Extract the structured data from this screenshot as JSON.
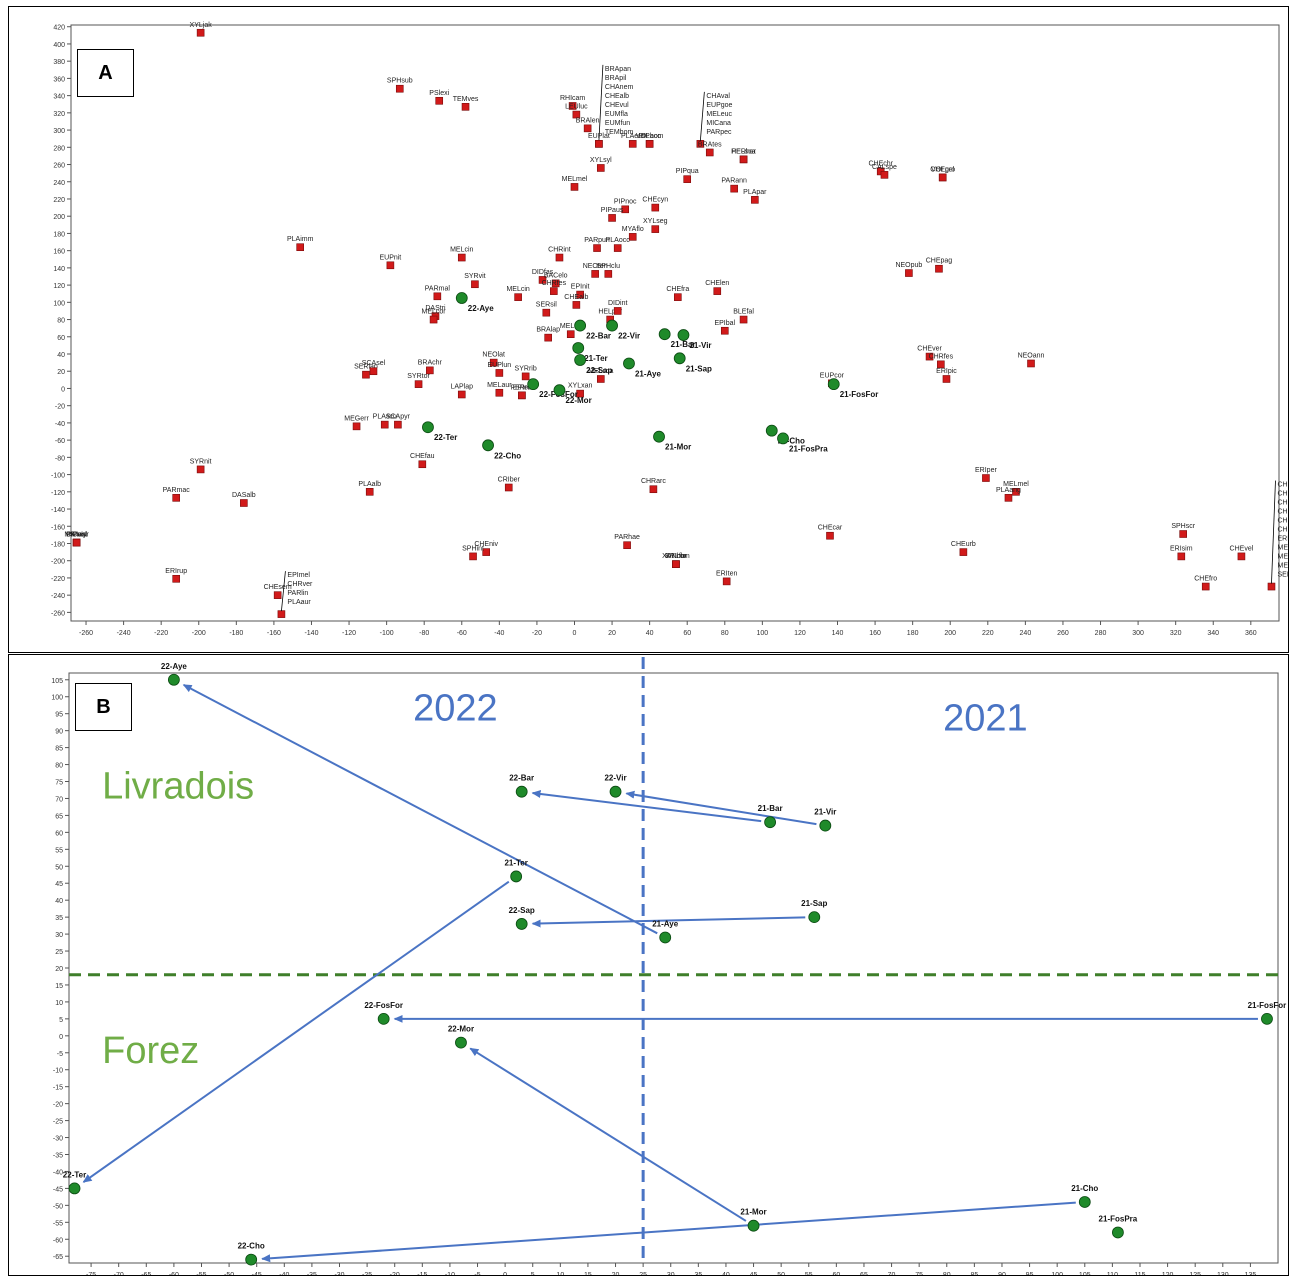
{
  "chart_data": [
    {
      "type": "scatter",
      "panel_label": "A",
      "xlim": [
        -268,
        375
      ],
      "ylim": [
        -270,
        422
      ],
      "x_ticks": [
        -260,
        -240,
        -220,
        -200,
        -180,
        -160,
        -140,
        -120,
        -100,
        -80,
        -60,
        -40,
        -20,
        0,
        20,
        40,
        60,
        80,
        100,
        120,
        140,
        160,
        180,
        200,
        220,
        240,
        260,
        280,
        300,
        320,
        340,
        360
      ],
      "y_ticks": [
        420,
        400,
        380,
        360,
        340,
        320,
        300,
        280,
        260,
        240,
        220,
        200,
        180,
        160,
        140,
        120,
        100,
        80,
        60,
        40,
        20,
        0,
        -20,
        -40,
        -60,
        -80,
        -100,
        -120,
        -140,
        -160,
        -180,
        -200,
        -220,
        -240,
        -260
      ],
      "species_color": "#d11a1a",
      "site_color": "#1f8a2a",
      "species": [
        {
          "label": "XYLjak",
          "x": -199,
          "y": 413
        },
        {
          "label": "SPHsub",
          "x": -93,
          "y": 348
        },
        {
          "label": "PSlexi",
          "x": -72,
          "y": 334
        },
        {
          "label": "TEMves",
          "x": -58,
          "y": 327
        },
        {
          "label": "RHIcam",
          "x": -1,
          "y": 328
        },
        {
          "label": "LEUluc",
          "x": 1,
          "y": 318
        },
        {
          "label": "BRAlen",
          "x": 7,
          "y": 302
        },
        {
          "label": "BRApan / BRApil / CHAnem / CHEalb / CHEvul / EUMfla / EUMfun / TEMbom",
          "x": 13,
          "y": 284
        },
        {
          "label": "EUPlat",
          "x": 13,
          "y": 284
        },
        {
          "label": "PLAeur",
          "x": 31,
          "y": 284
        },
        {
          "label": "PIPacc",
          "x": 40,
          "y": 284
        },
        {
          "label": "VOLbom",
          "x": 40,
          "y": 284
        },
        {
          "label": "CHAval / EUPgoe / MELeuc / MICana / PARpec",
          "x": 67,
          "y": 284
        },
        {
          "label": "BRAtes",
          "x": 72,
          "y": 274
        },
        {
          "label": "HERher",
          "x": 90,
          "y": 266
        },
        {
          "label": "PELsca",
          "x": 90,
          "y": 266
        },
        {
          "label": "XYLsyl",
          "x": 14,
          "y": 256
        },
        {
          "label": "MELmel",
          "x": 0,
          "y": 234
        },
        {
          "label": "PIPqua",
          "x": 60,
          "y": 243
        },
        {
          "label": "PARann",
          "x": 85,
          "y": 232
        },
        {
          "label": "PLApar",
          "x": 96,
          "y": 219
        },
        {
          "label": "CHEchr",
          "x": 163,
          "y": 252
        },
        {
          "label": "CALspe",
          "x": 165,
          "y": 248
        },
        {
          "label": "CHEgro",
          "x": 196,
          "y": 245
        },
        {
          "label": "VOLpel",
          "x": 196,
          "y": 245
        },
        {
          "label": "PIPnoc",
          "x": 27,
          "y": 208
        },
        {
          "label": "PIPaus",
          "x": 20,
          "y": 198
        },
        {
          "label": "CHEcyn",
          "x": 43,
          "y": 210
        },
        {
          "label": "XYLseg",
          "x": 43,
          "y": 185
        },
        {
          "label": "MYAflo",
          "x": 31,
          "y": 176
        },
        {
          "label": "PLAimm",
          "x": -146,
          "y": 164
        },
        {
          "label": "EUPnit",
          "x": -98,
          "y": 143
        },
        {
          "label": "MELcin",
          "x": -60,
          "y": 152
        },
        {
          "label": "CHRint",
          "x": -8,
          "y": 152
        },
        {
          "label": "PARpun",
          "x": 12,
          "y": 163
        },
        {
          "label": "PLAocc",
          "x": 23,
          "y": 163
        },
        {
          "label": "NEOten",
          "x": 11,
          "y": 133
        },
        {
          "label": "SPHclu",
          "x": 18,
          "y": 133
        },
        {
          "label": "SYRvit",
          "x": -53,
          "y": 121
        },
        {
          "label": "PARmal",
          "x": -73,
          "y": 107
        },
        {
          "label": "DIDfas",
          "x": -17,
          "y": 126
        },
        {
          "label": "BACelo",
          "x": -10,
          "y": 122
        },
        {
          "label": "CHRfes",
          "x": -11,
          "y": 113
        },
        {
          "label": "EPInit",
          "x": 3,
          "y": 109
        },
        {
          "label": "MELcin",
          "x": -30,
          "y": 106
        },
        {
          "label": "CHEfra",
          "x": 55,
          "y": 106
        },
        {
          "label": "CHElen",
          "x": 76,
          "y": 113
        },
        {
          "label": "DAStri",
          "x": -74,
          "y": 84
        },
        {
          "label": "MELcor",
          "x": -75,
          "y": 80
        },
        {
          "label": "SERsil",
          "x": -15,
          "y": 88
        },
        {
          "label": "CHEalb",
          "x": 1,
          "y": 97
        },
        {
          "label": "HELper",
          "x": 19,
          "y": 80
        },
        {
          "label": "DIDint",
          "x": 23,
          "y": 90
        },
        {
          "label": "EPIbal",
          "x": 80,
          "y": 67
        },
        {
          "label": "BLEfal",
          "x": 90,
          "y": 80
        },
        {
          "label": "NEOpub",
          "x": 178,
          "y": 134
        },
        {
          "label": "CHEpag",
          "x": 194,
          "y": 139
        },
        {
          "label": "MELsp",
          "x": -2,
          "y": 63
        },
        {
          "label": "BRAlap",
          "x": -14,
          "y": 59
        },
        {
          "label": "NEOlat",
          "x": -43,
          "y": 30
        },
        {
          "label": "SYRrib",
          "x": -26,
          "y": 14
        },
        {
          "label": "EUPlun",
          "x": -40,
          "y": 18
        },
        {
          "label": "MELsca",
          "x": 14,
          "y": 11
        },
        {
          "label": "SERlap",
          "x": -111,
          "y": 16
        },
        {
          "label": "SCAsel",
          "x": -107,
          "y": 20
        },
        {
          "label": "BRAchr",
          "x": -77,
          "y": 21
        },
        {
          "label": "SYRtor",
          "x": -83,
          "y": 5
        },
        {
          "label": "LAPlap",
          "x": -60,
          "y": -7
        },
        {
          "label": "MELaur",
          "x": -40,
          "y": -5
        },
        {
          "label": "FERruf",
          "x": -28,
          "y": -8
        },
        {
          "label": "XYLxan",
          "x": 3,
          "y": -6
        },
        {
          "label": "EPIeli",
          "x": -28,
          "y": -8
        },
        {
          "label": "MEGerr",
          "x": -116,
          "y": -44
        },
        {
          "label": "PLAscu",
          "x": -101,
          "y": -42
        },
        {
          "label": "SCApyr",
          "x": -94,
          "y": -42
        },
        {
          "label": "CHEfau",
          "x": -81,
          "y": -88
        },
        {
          "label": "EUPcor",
          "x": 137,
          "y": 6
        },
        {
          "label": "CHEver",
          "x": 189,
          "y": 37
        },
        {
          "label": "CHRfes",
          "x": 195,
          "y": 28
        },
        {
          "label": "ERIpic",
          "x": 198,
          "y": 11
        },
        {
          "label": "NEOann",
          "x": 243,
          "y": 29
        },
        {
          "label": "SYRnit",
          "x": -199,
          "y": -94
        },
        {
          "label": "PARmac",
          "x": -212,
          "y": -127
        },
        {
          "label": "DASalb",
          "x": -176,
          "y": -133
        },
        {
          "label": "PLAalb",
          "x": -109,
          "y": -120
        },
        {
          "label": "CRIber",
          "x": -35,
          "y": -115
        },
        {
          "label": "CHRarc",
          "x": 42,
          "y": -117
        },
        {
          "label": "ERIper",
          "x": 219,
          "y": -104
        },
        {
          "label": "MELmel",
          "x": 235,
          "y": -120
        },
        {
          "label": "PLAang",
          "x": 231,
          "y": -127
        },
        {
          "label": "CRIasi",
          "x": -265,
          "y": -179
        },
        {
          "label": "MICmyr",
          "x": -265,
          "y": -179
        },
        {
          "label": "PIPnot",
          "x": -265,
          "y": -179
        },
        {
          "label": "PIPvid",
          "x": -265,
          "y": -179
        },
        {
          "label": "CHEniv",
          "x": -47,
          "y": -190
        },
        {
          "label": "SPHint",
          "x": -54,
          "y": -195
        },
        {
          "label": "PARhae",
          "x": 28,
          "y": -182
        },
        {
          "label": "ERIhor",
          "x": 54,
          "y": -204
        },
        {
          "label": "XANcom",
          "x": 54,
          "y": -204
        },
        {
          "label": "XYLflo",
          "x": 54,
          "y": -204
        },
        {
          "label": "CHEcar",
          "x": 136,
          "y": -171
        },
        {
          "label": "CHEurb",
          "x": 207,
          "y": -190
        },
        {
          "label": "ERIrup",
          "x": -212,
          "y": -221
        },
        {
          "label": "ERIten",
          "x": 81,
          "y": -224
        },
        {
          "label": "CHEsem",
          "x": -158,
          "y": -240
        },
        {
          "label": "EPImel / CHRver / PARlin / PLAaur",
          "x": -156,
          "y": -262
        },
        {
          "label": "SPHscr",
          "x": 324,
          "y": -169
        },
        {
          "label": "ERIsim",
          "x": 323,
          "y": -195
        },
        {
          "label": "CHEvel",
          "x": 355,
          "y": -195
        },
        {
          "label": "CHEfro",
          "x": 336,
          "y": -230
        },
        {
          "label": "CHEant / CHEbar / CHEcla / CHEpsi / CHEpub / CHEuvi / ERIjug / MELhir / MERaen / MERequ / SERbom",
          "x": 371,
          "y": -230
        }
      ],
      "sites": [
        {
          "label": "22-Aye",
          "x": -60,
          "y": 105
        },
        {
          "label": "22-Bar",
          "x": 3,
          "y": 73
        },
        {
          "label": "22-Vir",
          "x": 20,
          "y": 73
        },
        {
          "label": "21-Bar",
          "x": 48,
          "y": 63
        },
        {
          "label": "21-Vir",
          "x": 58,
          "y": 62
        },
        {
          "label": "21-Ter",
          "x": 2,
          "y": 47
        },
        {
          "label": "22-Sap",
          "x": 3,
          "y": 33
        },
        {
          "label": "21-Aye",
          "x": 29,
          "y": 29
        },
        {
          "label": "21-Sap",
          "x": 56,
          "y": 35
        },
        {
          "label": "22-FosFor",
          "x": -22,
          "y": 5
        },
        {
          "label": "22-Mor",
          "x": -8,
          "y": -2
        },
        {
          "label": "21-FosFor",
          "x": 138,
          "y": 5
        },
        {
          "label": "22-Ter",
          "x": -78,
          "y": -45
        },
        {
          "label": "22-Cho",
          "x": -46,
          "y": -66
        },
        {
          "label": "21-Mor",
          "x": 45,
          "y": -56
        },
        {
          "label": "21-Cho",
          "x": 105,
          "y": -49
        },
        {
          "label": "21-FosPra",
          "x": 111,
          "y": -58
        }
      ]
    },
    {
      "type": "scatter",
      "panel_label": "B",
      "xlim": [
        -79,
        140
      ],
      "ylim": [
        -67,
        107
      ],
      "x_ticks": [
        -75,
        -70,
        -65,
        -60,
        -55,
        -50,
        -45,
        -40,
        -35,
        -30,
        -25,
        -20,
        -15,
        -10,
        -5,
        0,
        5,
        10,
        15,
        20,
        25,
        30,
        35,
        40,
        45,
        50,
        55,
        60,
        65,
        70,
        75,
        80,
        85,
        90,
        95,
        100,
        105,
        110,
        115,
        120,
        125,
        130,
        135
      ],
      "y_ticks": [
        105,
        100,
        95,
        90,
        85,
        80,
        75,
        70,
        65,
        60,
        55,
        50,
        45,
        40,
        35,
        30,
        25,
        20,
        15,
        10,
        5,
        0,
        -5,
        -10,
        -15,
        -20,
        -25,
        -30,
        -35,
        -40,
        -45,
        -50,
        -55,
        -60,
        -65
      ],
      "site_color": "#1f8a2a",
      "arrow_color": "#4a74c4",
      "year_line_x": 25,
      "region_line_y": 18,
      "region_line_color": "#3f7f2a",
      "text_labels": {
        "year_left": "2022",
        "year_right": "2021",
        "region_top": "Livradois",
        "region_bottom": "Forez"
      },
      "year_label_color": "#4a74c4",
      "region_label_color": "#70ad47",
      "sites": [
        {
          "label": "22-Aye",
          "x": -60,
          "y": 105
        },
        {
          "label": "22-Bar",
          "x": 3,
          "y": 72
        },
        {
          "label": "22-Vir",
          "x": 20,
          "y": 72
        },
        {
          "label": "21-Bar",
          "x": 48,
          "y": 63
        },
        {
          "label": "21-Vir",
          "x": 58,
          "y": 62
        },
        {
          "label": "21-Ter",
          "x": 2,
          "y": 47
        },
        {
          "label": "22-Sap",
          "x": 3,
          "y": 33
        },
        {
          "label": "21-Aye",
          "x": 29,
          "y": 29
        },
        {
          "label": "21-Sap",
          "x": 56,
          "y": 35
        },
        {
          "label": "22-FosFor",
          "x": -22,
          "y": 5
        },
        {
          "label": "21-FosFor",
          "x": 138,
          "y": 5
        },
        {
          "label": "22-Mor",
          "x": -8,
          "y": -2
        },
        {
          "label": "22-Ter",
          "x": -78,
          "y": -45
        },
        {
          "label": "21-Mor",
          "x": 45,
          "y": -56
        },
        {
          "label": "21-Cho",
          "x": 105,
          "y": -49
        },
        {
          "label": "21-FosPra",
          "x": 111,
          "y": -58
        },
        {
          "label": "22-Cho",
          "x": -46,
          "y": -66
        }
      ],
      "arrows": [
        {
          "from": "21-Aye",
          "to": "22-Aye"
        },
        {
          "from": "21-Bar",
          "to": "22-Bar"
        },
        {
          "from": "21-Vir",
          "to": "22-Vir"
        },
        {
          "from": "21-Ter",
          "to": "22-Ter"
        },
        {
          "from": "21-Sap",
          "to": "22-Sap"
        },
        {
          "from": "21-FosFor",
          "to": "22-FosFor"
        },
        {
          "from": "21-Mor",
          "to": "22-Mor"
        },
        {
          "from": "21-Cho",
          "to": "22-Cho"
        }
      ]
    }
  ]
}
